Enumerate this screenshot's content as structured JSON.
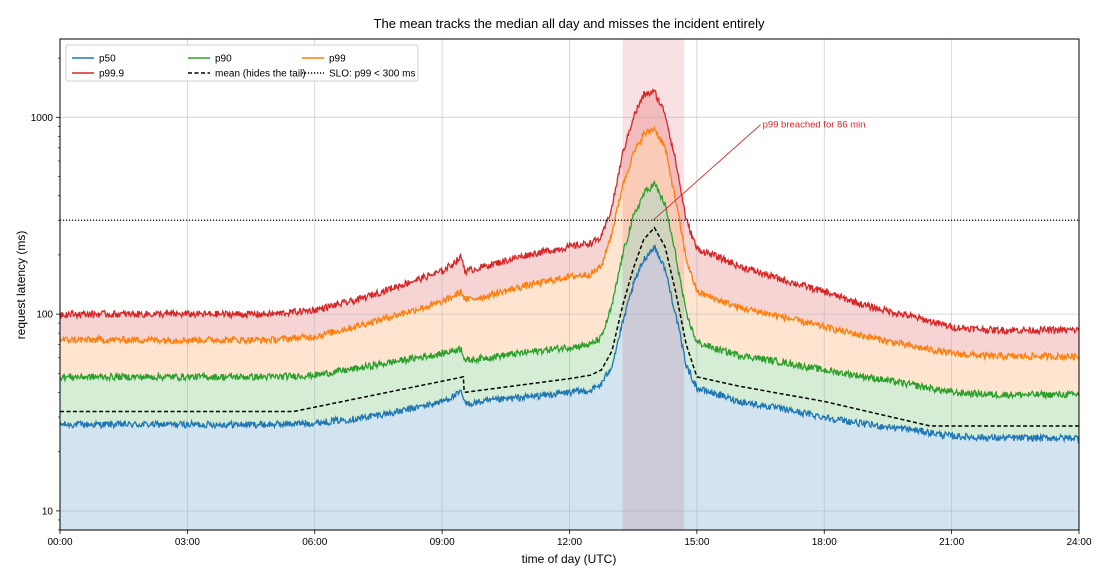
{
  "chart_data": {
    "type": "line",
    "title": "The mean tracks the median all day and misses the incident entirely",
    "xlabel": "time of day (UTC)",
    "ylabel": "request latency (ms)",
    "y_scale": "log",
    "xlim": [
      0,
      24
    ],
    "ylim": [
      8,
      2500
    ],
    "x_ticks": [
      "00:00",
      "03:00",
      "06:00",
      "09:00",
      "12:00",
      "15:00",
      "18:00",
      "21:00",
      "24:00"
    ],
    "y_ticks": [
      "10",
      "100",
      "1000"
    ],
    "grid": true,
    "legend": {
      "placement": "top-left",
      "entries": [
        "p50",
        "p90",
        "p99",
        "p99.9",
        "mean (hides the tail)",
        "SLO: p99 < 300 ms"
      ]
    },
    "incident_window": {
      "start": 13.25,
      "end": 14.7,
      "color": "#f4c2c6"
    },
    "slo": {
      "name": "SLO: p99 < 300 ms",
      "value": 300,
      "style": "dotted",
      "color": "#000000"
    },
    "annotation": {
      "text": "p99 breached for 86 min",
      "x": 16.5,
      "y": 950,
      "point_x": 13.5,
      "point_y": 300,
      "color": "#d62728"
    },
    "series": [
      {
        "name": "p50",
        "color": "#1f77b4",
        "fill": true,
        "x": [
          0,
          1,
          2,
          3,
          4,
          5,
          6,
          7,
          8,
          9,
          9.45,
          9.55,
          10,
          11,
          12,
          12.5,
          12.75,
          13,
          13.25,
          13.5,
          13.75,
          14,
          14.25,
          14.5,
          14.75,
          15,
          15.5,
          16,
          17,
          18,
          19,
          20,
          20.5,
          21,
          22,
          23,
          24
        ],
        "values": [
          27.5,
          27.5,
          27.5,
          27.5,
          27.5,
          27.5,
          28,
          29.5,
          32,
          36,
          40,
          35,
          36,
          38,
          40,
          41,
          44,
          55,
          90,
          140,
          190,
          220,
          170,
          100,
          55,
          42,
          39,
          36,
          33,
          30,
          27.5,
          26,
          25,
          24,
          23.5,
          23.5,
          23.5
        ]
      },
      {
        "name": "p90",
        "color": "#2ca02c",
        "fill": true,
        "x": [
          0,
          1,
          2,
          3,
          4,
          5,
          6,
          7,
          8,
          9,
          9.45,
          9.55,
          10,
          11,
          12,
          12.5,
          12.75,
          13,
          13.25,
          13.5,
          13.75,
          14,
          14.25,
          14.5,
          14.75,
          15,
          15.5,
          16,
          17,
          18,
          19,
          20,
          20.5,
          21,
          22,
          23,
          24
        ],
        "values": [
          48,
          48,
          48,
          48,
          48,
          48,
          49,
          53,
          58,
          63,
          67,
          58,
          60,
          64,
          68,
          70,
          76,
          110,
          200,
          310,
          410,
          460,
          360,
          200,
          100,
          72,
          66,
          62,
          57,
          52,
          48,
          44,
          42,
          40,
          39,
          39,
          39
        ]
      },
      {
        "name": "p99",
        "color": "#ff7f0e",
        "fill": true,
        "x": [
          0,
          1,
          2,
          3,
          4,
          5,
          6,
          7,
          8,
          9,
          9.45,
          9.55,
          10,
          11,
          12,
          12.5,
          12.75,
          13,
          13.25,
          13.5,
          13.75,
          14,
          14.25,
          14.5,
          14.75,
          15,
          15.5,
          16,
          17,
          18,
          19,
          20,
          20.5,
          21,
          22,
          23,
          24
        ],
        "values": [
          74,
          74,
          74,
          74,
          74,
          74,
          77,
          87,
          100,
          115,
          130,
          118,
          123,
          140,
          155,
          160,
          175,
          260,
          450,
          650,
          820,
          880,
          700,
          380,
          190,
          130,
          118,
          108,
          97,
          86,
          77,
          69,
          66,
          63,
          61,
          61,
          61
        ]
      },
      {
        "name": "p99.9",
        "color": "#d62728",
        "fill": true,
        "x": [
          0,
          1,
          2,
          3,
          4,
          5,
          6,
          7,
          8,
          9,
          9.45,
          9.55,
          10,
          11,
          12,
          12.5,
          12.75,
          13,
          13.25,
          13.5,
          13.75,
          14,
          14.25,
          14.5,
          14.75,
          15,
          15.5,
          16,
          17,
          18,
          19,
          20,
          20.5,
          21,
          22,
          23,
          24
        ],
        "values": [
          100,
          100,
          100,
          100,
          100,
          100,
          105,
          118,
          140,
          165,
          195,
          165,
          175,
          200,
          220,
          230,
          245,
          350,
          650,
          1000,
          1300,
          1350,
          1050,
          600,
          300,
          215,
          195,
          175,
          150,
          130,
          110,
          98,
          92,
          86,
          83,
          83,
          83
        ]
      },
      {
        "name": "mean (hides the tail)",
        "color": "#000000",
        "fill": false,
        "style": "dashed",
        "x": [
          0,
          5.5,
          9.5,
          9.52,
          12,
          12.5,
          12.75,
          13,
          13.25,
          13.5,
          13.75,
          14,
          14.25,
          14.5,
          14.75,
          15,
          16,
          18,
          20.5,
          21,
          24
        ],
        "values": [
          32,
          32,
          48,
          40,
          47,
          49,
          52,
          65,
          110,
          170,
          240,
          275,
          220,
          130,
          70,
          48,
          43,
          36,
          27,
          27,
          27
        ]
      }
    ]
  }
}
